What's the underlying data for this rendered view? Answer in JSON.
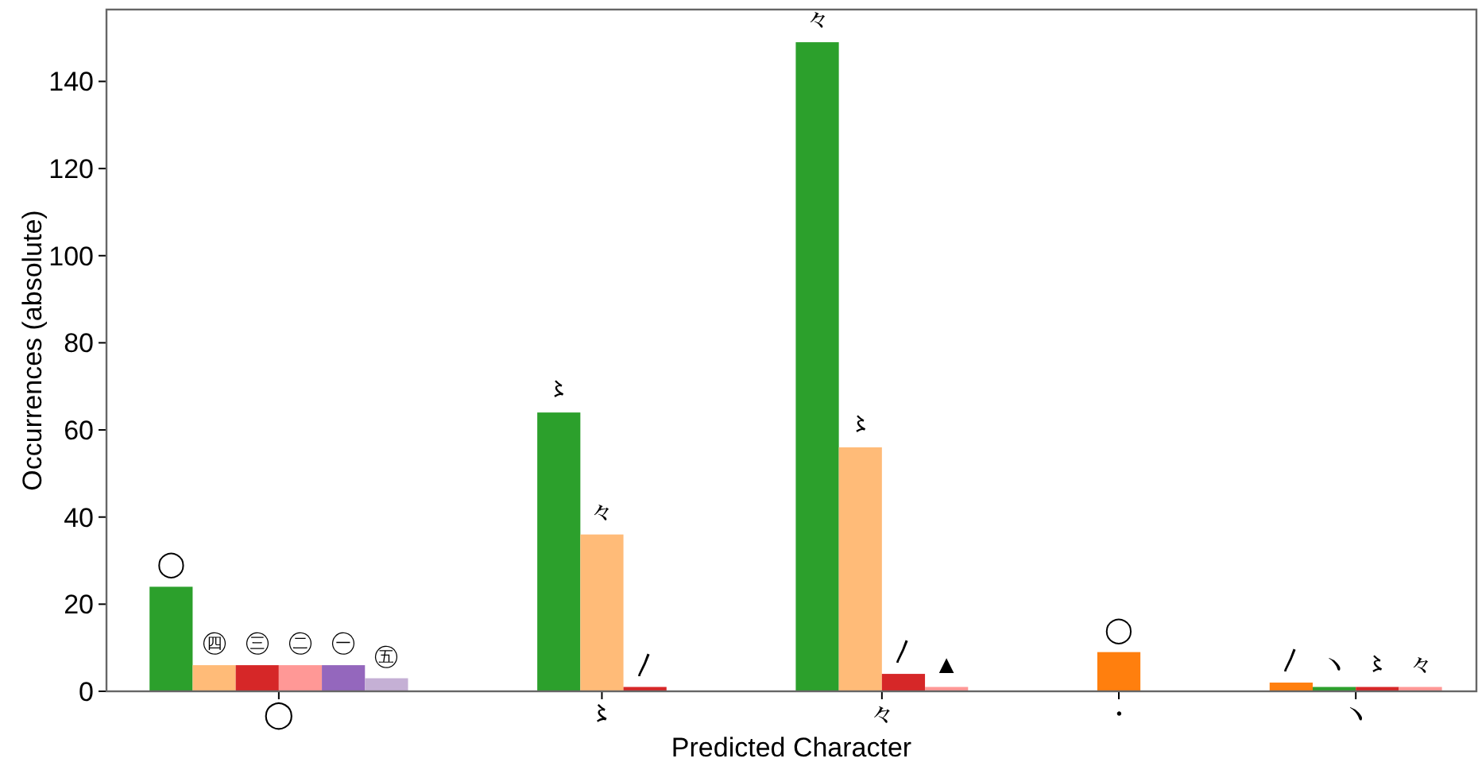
{
  "chart_data": {
    "type": "bar",
    "xlabel": "Predicted Character",
    "ylabel": "Occurrences (absolute)",
    "categories": [
      "◯",
      "〻",
      "々",
      "・",
      "ヽ"
    ],
    "series": [
      {
        "values": [
          24,
          64,
          149,
          9,
          2
        ],
        "colors": [
          "#2ca02c",
          "#2ca02c",
          "#2ca02c",
          "#ff7f0e",
          "#ff7f0e"
        ],
        "value_labels": [
          "◯",
          "〻",
          "々",
          "◯",
          "〳"
        ]
      },
      {
        "values": [
          6,
          36,
          56,
          null,
          1
        ],
        "colors": [
          "#ffbb78",
          "#ffbb78",
          "#ffbb78",
          null,
          "#2ca02c"
        ],
        "value_labels": [
          "㊃",
          "々",
          "〻",
          null,
          "ヽ"
        ]
      },
      {
        "values": [
          6,
          1,
          4,
          null,
          1
        ],
        "colors": [
          "#d62728",
          "#d62728",
          "#d62728",
          null,
          "#d62728"
        ],
        "value_labels": [
          "㊂",
          "〳",
          "〳",
          null,
          "〻"
        ]
      },
      {
        "values": [
          6,
          null,
          1,
          null,
          1
        ],
        "colors": [
          "#ff9896",
          null,
          "#ff9896",
          null,
          "#ff9896"
        ],
        "value_labels": [
          "㊁",
          null,
          "▲",
          null,
          "々"
        ]
      },
      {
        "values": [
          6,
          null,
          null,
          null,
          null
        ],
        "colors": [
          "#9467bd",
          null,
          null,
          null,
          null
        ],
        "value_labels": [
          "㊀",
          null,
          null,
          null,
          null
        ]
      },
      {
        "values": [
          3,
          null,
          null,
          null,
          null
        ],
        "colors": [
          "#c5b0d5",
          null,
          null,
          null,
          null
        ],
        "value_labels": [
          "㊄",
          null,
          null,
          null,
          null
        ]
      }
    ],
    "ylim": [
      0,
      156.5
    ],
    "yticks": [
      0,
      20,
      40,
      60,
      80,
      100,
      120,
      140
    ]
  }
}
